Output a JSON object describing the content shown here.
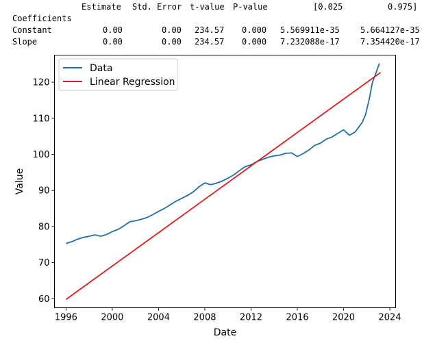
{
  "coefficients_table": {
    "heading": "Coefficients",
    "columns": [
      "Estimate",
      "Std. Error",
      "t-value",
      "P-value",
      "[0.025",
      "0.975]"
    ],
    "rows": [
      {
        "name": "Constant",
        "cells": [
          "0.00",
          "0.00",
          "234.57",
          "0.000",
          "5.569911e-35",
          "5.664127e-35"
        ]
      },
      {
        "name": "Slope",
        "cells": [
          "0.00",
          "0.00",
          "234.57",
          "0.000",
          "7.232088e-17",
          "7.354420e-17"
        ]
      }
    ]
  },
  "chart_data": {
    "type": "line",
    "xlabel": "Date",
    "ylabel": "Value",
    "xlim": [
      1995.0,
      2024.5
    ],
    "ylim": [
      57.5,
      127.5
    ],
    "x_ticks": [
      1996,
      2000,
      2004,
      2008,
      2012,
      2016,
      2020,
      2024
    ],
    "x_tick_labels": [
      "1996",
      "2000",
      "2004",
      "2008",
      "2012",
      "2016",
      "2020",
      "2024"
    ],
    "y_ticks": [
      60,
      70,
      80,
      90,
      100,
      110,
      120
    ],
    "y_tick_labels": [
      "60",
      "70",
      "80",
      "90",
      "100",
      "110",
      "120"
    ],
    "grid": false,
    "legend_position": "upper-left",
    "series": [
      {
        "name": "Data",
        "color": "#1f6f9f",
        "x": [
          1996.0,
          1996.5,
          1997.0,
          1997.5,
          1998.0,
          1998.5,
          1999.0,
          1999.5,
          2000.0,
          2000.5,
          2001.0,
          2001.5,
          2002.0,
          2002.5,
          2003.0,
          2003.5,
          2004.0,
          2004.5,
          2005.0,
          2005.5,
          2006.0,
          2006.5,
          2007.0,
          2007.5,
          2008.0,
          2008.5,
          2009.0,
          2009.5,
          2010.0,
          2010.5,
          2011.0,
          2011.5,
          2012.0,
          2012.5,
          2013.0,
          2013.5,
          2014.0,
          2014.5,
          2015.0,
          2015.5,
          2016.0,
          2016.5,
          2017.0,
          2017.5,
          2018.0,
          2018.5,
          2019.0,
          2019.5,
          2020.0,
          2020.5,
          2021.0,
          2021.3,
          2021.6,
          2021.9,
          2022.2,
          2022.5,
          2022.8,
          2023.1
        ],
        "y": [
          75.3,
          75.8,
          76.5,
          77.0,
          77.3,
          77.7,
          77.3,
          77.8,
          78.6,
          79.2,
          80.2,
          81.3,
          81.6,
          82.0,
          82.5,
          83.3,
          84.2,
          85.0,
          86.0,
          87.0,
          87.8,
          88.6,
          89.6,
          91.0,
          92.1,
          91.6,
          92.0,
          92.6,
          93.4,
          94.3,
          95.5,
          96.6,
          97.1,
          98.0,
          98.6,
          99.2,
          99.6,
          99.8,
          100.3,
          100.4,
          99.4,
          100.2,
          101.2,
          102.5,
          103.1,
          104.2,
          104.8,
          105.8,
          106.8,
          105.3,
          106.2,
          107.5,
          108.8,
          111.0,
          115.0,
          120.0,
          122.5,
          125.2
        ]
      },
      {
        "name": "Linear Regression",
        "color": "#e31a1c",
        "x": [
          1996.0,
          2023.2
        ],
        "y": [
          59.8,
          122.7
        ]
      }
    ]
  }
}
